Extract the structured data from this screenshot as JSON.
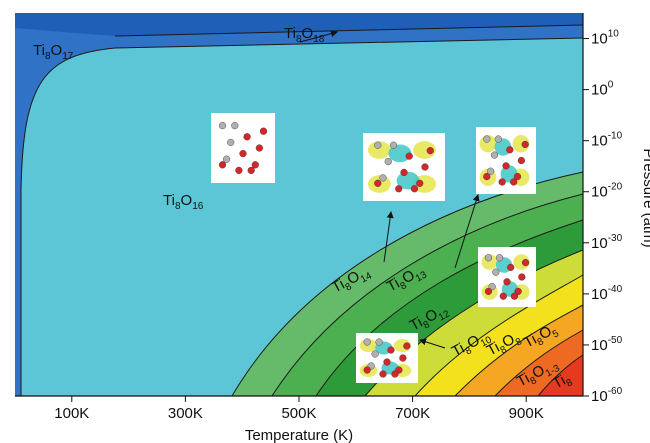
{
  "chart_data": {
    "type": "heatmap",
    "title": "",
    "xlabel": "Temperature (K)",
    "ylabel": "Pressure (atm)",
    "xlim": [
      0,
      1000
    ],
    "ylim_log10": [
      -60,
      15
    ],
    "y_scale": "log",
    "x_ticks": [
      {
        "value": 100,
        "label": "100K"
      },
      {
        "value": 300,
        "label": "300K"
      },
      {
        "value": 500,
        "label": "500K"
      },
      {
        "value": 700,
        "label": "700K"
      },
      {
        "value": 900,
        "label": "900K"
      }
    ],
    "y_ticks": [
      {
        "exp": 10,
        "label": "10",
        "sup": "10"
      },
      {
        "exp": 0,
        "label": "10",
        "sup": "0"
      },
      {
        "exp": -10,
        "label": "10",
        "sup": "-10"
      },
      {
        "exp": -20,
        "label": "10",
        "sup": "-20"
      },
      {
        "exp": -30,
        "label": "10",
        "sup": "-30"
      },
      {
        "exp": -40,
        "label": "10",
        "sup": "-40"
      },
      {
        "exp": -50,
        "label": "10",
        "sup": "-50"
      },
      {
        "exp": -60,
        "label": "10",
        "sup": "-60"
      }
    ],
    "phases": [
      {
        "base": "Ti",
        "sub1": "8",
        "mid": "O",
        "sub2": "18",
        "color": "#1f5fb8"
      },
      {
        "base": "Ti",
        "sub1": "8",
        "mid": "O",
        "sub2": "17",
        "color": "#2f72c6"
      },
      {
        "base": "Ti",
        "sub1": "8",
        "mid": "O",
        "sub2": "16",
        "color": "#5dc6d6"
      },
      {
        "base": "Ti",
        "sub1": "8",
        "mid": "O",
        "sub2": "14",
        "color": "#66bb6a"
      },
      {
        "base": "Ti",
        "sub1": "8",
        "mid": "O",
        "sub2": "13",
        "color": "#4caf50"
      },
      {
        "base": "Ti",
        "sub1": "8",
        "mid": "O",
        "sub2": "12",
        "color": "#2e9b3a"
      },
      {
        "base": "Ti",
        "sub1": "8",
        "mid": "O",
        "sub2": "10",
        "color": "#cddc39"
      },
      {
        "base": "Ti",
        "sub1": "8",
        "mid": "O",
        "sub2": "8",
        "color": "#f2e11c"
      },
      {
        "base": "Ti",
        "sub1": "8",
        "mid": "O",
        "sub2": "5",
        "color": "#f5a623"
      },
      {
        "base": "Ti",
        "sub1": "8",
        "mid": "O",
        "sub2": "1-3",
        "color": "#ee6a22"
      },
      {
        "base": "Ti",
        "sub1": "8",
        "mid": "",
        "sub2": "",
        "color": "#e53a1f"
      }
    ],
    "colors": {
      "top_band": "#1f5fb8",
      "left_band": "#2f72c6",
      "main_region": "#5dc6d6",
      "green_light": "#66bb6a",
      "green_mid": "#4caf50",
      "green_dark": "#2e9b3a",
      "lime": "#cddc39",
      "yellow": "#f2e11c",
      "orange": "#f5a623",
      "orange_red": "#ee6a22",
      "red": "#e53a1f"
    },
    "grid": false,
    "insets": 5
  }
}
